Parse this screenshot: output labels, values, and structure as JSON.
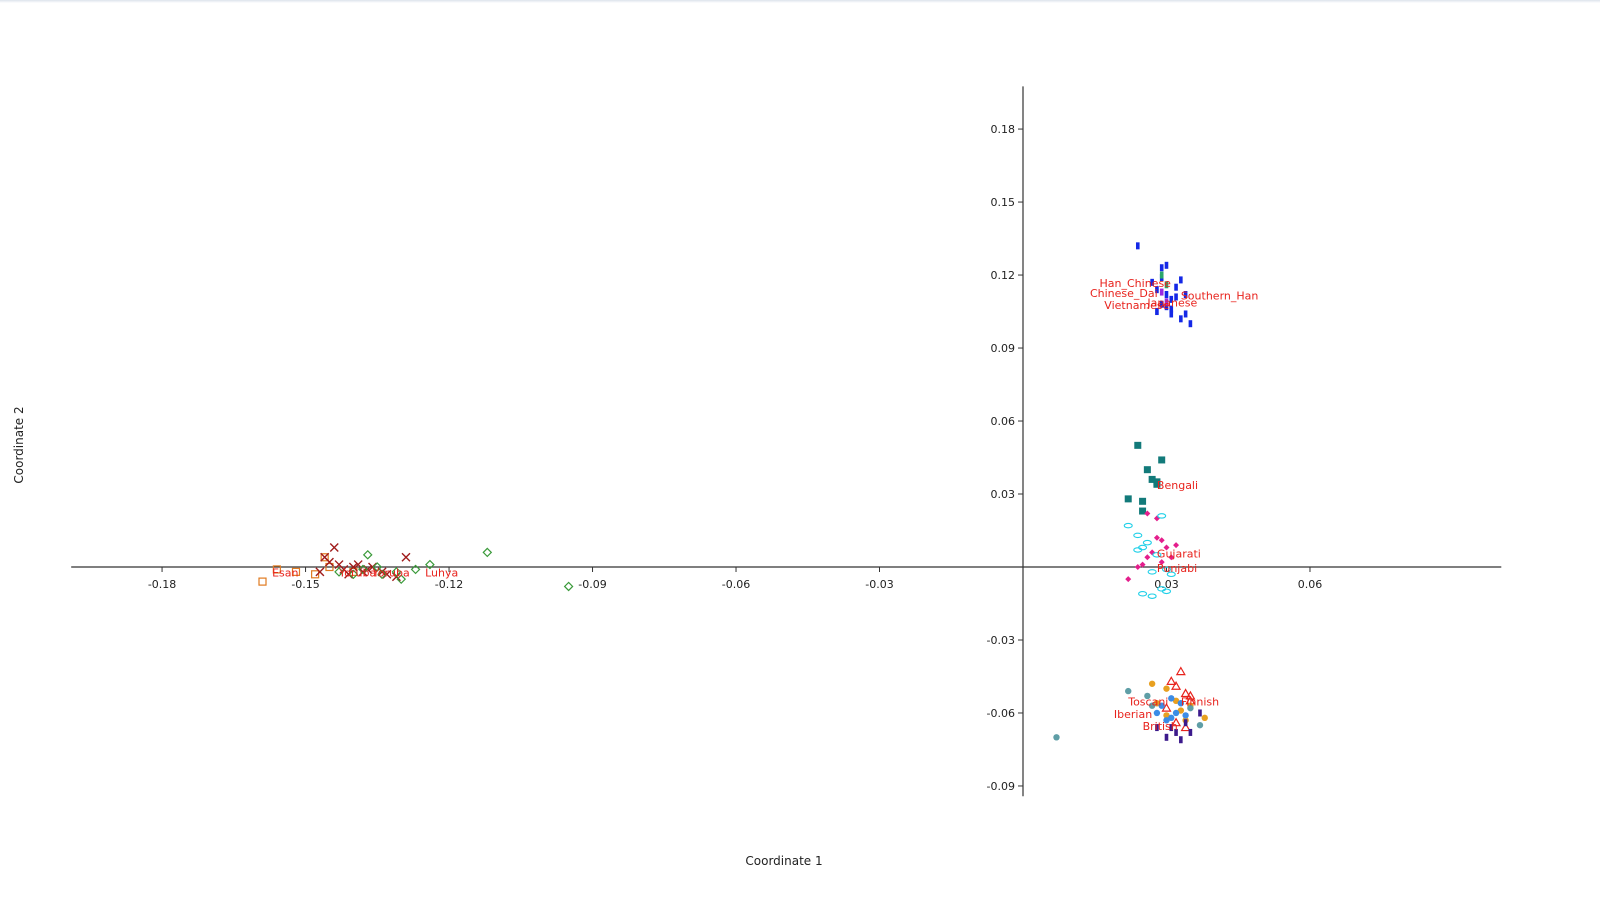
{
  "chart_data": {
    "type": "scatter",
    "title": "",
    "xlabel": "Coordinate 1",
    "ylabel": "Coordinate 2",
    "xlim": [
      -0.199,
      0.1
    ],
    "ylim": [
      -0.1,
      0.2
    ],
    "grid": false,
    "x_ticks": [
      "-0.18",
      "-0.15",
      "-0.12",
      "-0.09",
      "-0.06",
      "-0.03",
      "0.03",
      "0.06"
    ],
    "y_ticks": [
      "0.18",
      "0.15",
      "0.12",
      "0.09",
      "0.06",
      "0.03",
      "-0.03",
      "-0.06",
      "-0.09"
    ],
    "series": [
      {
        "color": "#1428e6",
        "marker": "bar",
        "points": [
          [
            0.024,
            0.132
          ],
          [
            0.029,
            0.123
          ],
          [
            0.03,
            0.124
          ],
          [
            0.027,
            0.117
          ],
          [
            0.028,
            0.114
          ],
          [
            0.03,
            0.112
          ],
          [
            0.031,
            0.11
          ],
          [
            0.032,
            0.115
          ],
          [
            0.033,
            0.118
          ],
          [
            0.029,
            0.108
          ],
          [
            0.031,
            0.106
          ],
          [
            0.034,
            0.104
          ],
          [
            0.028,
            0.105
          ],
          [
            0.033,
            0.102
          ],
          [
            0.035,
            0.1
          ],
          [
            0.032,
            0.111
          ],
          [
            0.03,
            0.107
          ],
          [
            0.034,
            0.112
          ],
          [
            0.029,
            0.119
          ],
          [
            0.031,
            0.104
          ]
        ]
      },
      {
        "color": "#2aa66a",
        "marker": "bar",
        "points": [
          [
            0.029,
            0.12
          ],
          [
            0.03,
            0.116
          ]
        ]
      },
      {
        "color": "#9b2ae0",
        "marker": "bar",
        "points": [
          [
            0.03,
            0.109
          ],
          [
            0.029,
            0.113
          ]
        ]
      },
      {
        "color": "#127a7a",
        "marker": "square",
        "points": [
          [
            0.024,
            0.05
          ],
          [
            0.029,
            0.044
          ],
          [
            0.026,
            0.04
          ],
          [
            0.027,
            0.036
          ],
          [
            0.028,
            0.034
          ],
          [
            0.022,
            0.028
          ],
          [
            0.025,
            0.027
          ],
          [
            0.025,
            0.023
          ],
          [
            0.028,
            0.035
          ]
        ]
      },
      {
        "color": "#e41e8c",
        "marker": "diamond-filled",
        "points": [
          [
            0.026,
            0.022
          ],
          [
            0.028,
            0.02
          ],
          [
            0.028,
            0.012
          ],
          [
            0.029,
            0.011
          ],
          [
            0.03,
            0.008
          ],
          [
            0.032,
            0.009
          ],
          [
            0.027,
            0.006
          ],
          [
            0.026,
            0.004
          ],
          [
            0.029,
            0.002
          ],
          [
            0.025,
            0.001
          ],
          [
            0.022,
            -0.005
          ],
          [
            0.024,
            0.0
          ],
          [
            0.031,
            0.004
          ]
        ]
      },
      {
        "color": "#20d0e8",
        "marker": "ellipse",
        "points": [
          [
            0.022,
            0.017
          ],
          [
            0.024,
            0.013
          ],
          [
            0.026,
            0.01
          ],
          [
            0.024,
            0.007
          ],
          [
            0.025,
            0.008
          ],
          [
            0.028,
            0.005
          ],
          [
            0.029,
            0.021
          ],
          [
            0.03,
            -0.001
          ],
          [
            0.027,
            -0.002
          ],
          [
            0.029,
            -0.009
          ],
          [
            0.03,
            -0.01
          ],
          [
            0.025,
            -0.011
          ],
          [
            0.027,
            -0.012
          ],
          [
            0.031,
            -0.003
          ]
        ]
      },
      {
        "color": "#e8231d",
        "marker": "triangle",
        "points": [
          [
            0.033,
            -0.043
          ],
          [
            0.031,
            -0.047
          ],
          [
            0.032,
            -0.049
          ],
          [
            0.034,
            -0.052
          ],
          [
            0.035,
            -0.053
          ],
          [
            0.03,
            -0.058
          ],
          [
            0.035,
            -0.055
          ],
          [
            0.032,
            -0.064
          ],
          [
            0.034,
            -0.066
          ]
        ]
      },
      {
        "color": "#e8a020",
        "marker": "circle",
        "points": [
          [
            0.027,
            -0.048
          ],
          [
            0.03,
            -0.05
          ],
          [
            0.032,
            -0.055
          ],
          [
            0.035,
            -0.057
          ],
          [
            0.038,
            -0.062
          ],
          [
            0.03,
            -0.061
          ],
          [
            0.034,
            -0.063
          ],
          [
            0.028,
            -0.056
          ],
          [
            0.033,
            -0.059
          ]
        ]
      },
      {
        "color": "#3c8ce6",
        "marker": "circle",
        "points": [
          [
            0.031,
            -0.054
          ],
          [
            0.029,
            -0.057
          ],
          [
            0.032,
            -0.06
          ],
          [
            0.034,
            -0.061
          ],
          [
            0.03,
            -0.063
          ],
          [
            0.028,
            -0.06
          ],
          [
            0.033,
            -0.056
          ],
          [
            0.031,
            -0.062
          ]
        ]
      },
      {
        "color": "#5f9ea6",
        "marker": "circle",
        "points": [
          [
            0.022,
            -0.051
          ],
          [
            0.026,
            -0.053
          ],
          [
            0.037,
            -0.065
          ],
          [
            0.007,
            -0.07
          ],
          [
            0.035,
            -0.058
          ],
          [
            0.027,
            -0.057
          ]
        ]
      },
      {
        "color": "#3c1a8c",
        "marker": "bar",
        "points": [
          [
            0.03,
            -0.07
          ],
          [
            0.033,
            -0.071
          ],
          [
            0.035,
            -0.068
          ],
          [
            0.031,
            -0.066
          ],
          [
            0.028,
            -0.066
          ],
          [
            0.037,
            -0.06
          ],
          [
            0.034,
            -0.064
          ],
          [
            0.032,
            -0.068
          ]
        ]
      },
      {
        "color": "#e07a20",
        "marker": "square-open",
        "points": [
          [
            -0.159,
            -0.006
          ],
          [
            -0.156,
            -0.001
          ],
          [
            -0.146,
            0.004
          ],
          [
            -0.145,
            0.0
          ],
          [
            -0.148,
            -0.003
          ],
          [
            -0.14,
            -0.002
          ],
          [
            -0.152,
            -0.002
          ]
        ]
      },
      {
        "color": "#a01c1c",
        "marker": "x",
        "points": [
          [
            -0.144,
            0.008
          ],
          [
            -0.146,
            0.004
          ],
          [
            -0.145,
            0.002
          ],
          [
            -0.143,
            0.001
          ],
          [
            -0.142,
            -0.001
          ],
          [
            -0.14,
            0.0
          ],
          [
            -0.139,
            0.001
          ],
          [
            -0.138,
            -0.002
          ],
          [
            -0.136,
            0.0
          ],
          [
            -0.134,
            -0.002
          ],
          [
            -0.133,
            -0.003
          ],
          [
            -0.131,
            -0.004
          ],
          [
            -0.129,
            0.004
          ],
          [
            -0.141,
            -0.003
          ],
          [
            -0.137,
            -0.001
          ],
          [
            -0.147,
            -0.002
          ]
        ]
      },
      {
        "color": "#3a9a3a",
        "marker": "diamond-open",
        "points": [
          [
            -0.112,
            0.006
          ],
          [
            -0.137,
            0.005
          ],
          [
            -0.135,
            0.0
          ],
          [
            -0.131,
            -0.002
          ],
          [
            -0.13,
            -0.005
          ],
          [
            -0.127,
            -0.001
          ],
          [
            -0.124,
            0.001
          ],
          [
            -0.095,
            -0.008
          ],
          [
            -0.14,
            -0.003
          ],
          [
            -0.138,
            -0.001
          ],
          [
            -0.134,
            -0.003
          ],
          [
            -0.143,
            -0.002
          ]
        ]
      }
    ],
    "labels": [
      {
        "text": "Han_Chinese",
        "x": 0.016,
        "y": 0.115
      },
      {
        "text": "Chinese_Dai",
        "x": 0.014,
        "y": 0.111
      },
      {
        "text": "Southern_Han",
        "x": 0.033,
        "y": 0.11
      },
      {
        "text": "Japanese",
        "x": 0.026,
        "y": 0.107
      },
      {
        "text": "Vietnamese",
        "x": 0.017,
        "y": 0.106
      },
      {
        "text": "Bengali",
        "x": 0.028,
        "y": 0.032
      },
      {
        "text": "Gujarati",
        "x": 0.028,
        "y": 0.004
      },
      {
        "text": "Punjabi",
        "x": 0.028,
        "y": -0.002
      },
      {
        "text": "Toscani",
        "x": 0.022,
        "y": -0.057
      },
      {
        "text": "Finnish",
        "x": 0.033,
        "y": -0.057
      },
      {
        "text": "Iberian",
        "x": 0.019,
        "y": -0.062
      },
      {
        "text": "British",
        "x": 0.025,
        "y": -0.067
      },
      {
        "text": "Esan",
        "x": -0.157,
        "y": -0.004
      },
      {
        "text": "Yoruba",
        "x": -0.143,
        "y": -0.004
      },
      {
        "text": "Yoruba",
        "x": -0.136,
        "y": -0.004
      },
      {
        "text": "Luhya",
        "x": -0.125,
        "y": -0.004
      }
    ]
  }
}
